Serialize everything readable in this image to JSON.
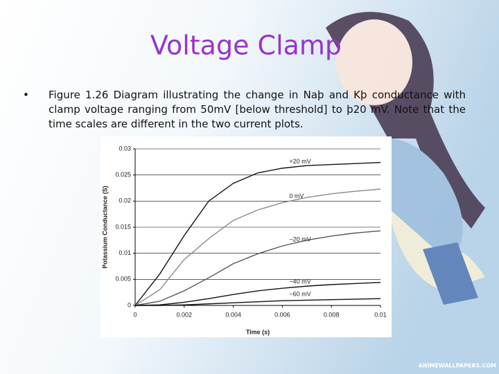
{
  "slide": {
    "title": "Voltage Clamp",
    "bullet": "Figure 1.26 Diagram illustrating the change in Naþ and Kþ conductance with clamp voltage ranging from 50mV [below threshold] to þ20 mV. Note that the time scales are different in the two current plots.",
    "watermark": "ANIMEWALLPAPERS.COM"
  },
  "chart_data": {
    "type": "line",
    "xlabel": "Time (s)",
    "ylabel": "Potassium Conductance (S)",
    "x": [
      0,
      0.001,
      0.002,
      0.003,
      0.004,
      0.005,
      0.006,
      0.007,
      0.008,
      0.009,
      0.01
    ],
    "xlim": [
      0,
      0.01
    ],
    "xticks": [
      0,
      0.002,
      0.004,
      0.006,
      0.008,
      0.01
    ],
    "ylim": [
      0,
      0.03
    ],
    "yticks": [
      0,
      0.005,
      0.01,
      0.015,
      0.02,
      0.025,
      0.03
    ],
    "series": [
      {
        "name": "+20 mV",
        "color": "#111111",
        "values": [
          0,
          0.006,
          0.0134,
          0.02,
          0.0234,
          0.0254,
          0.0263,
          0.0268,
          0.027,
          0.0272,
          0.0274
        ]
      },
      {
        "name": "0 mV",
        "color": "#8a8a8a",
        "values": [
          0,
          0.003,
          0.0088,
          0.0128,
          0.0163,
          0.0183,
          0.0197,
          0.0207,
          0.0214,
          0.0219,
          0.0223
        ]
      },
      {
        "name": "−20 mV",
        "color": "#555555",
        "values": [
          0,
          0.0008,
          0.0028,
          0.0053,
          0.008,
          0.0099,
          0.0114,
          0.0125,
          0.0133,
          0.0139,
          0.0143
        ]
      },
      {
        "name": "−40 mV",
        "color": "#111111",
        "values": [
          0,
          0.0001,
          0.0006,
          0.0013,
          0.0021,
          0.0028,
          0.0033,
          0.0037,
          0.004,
          0.0042,
          0.0044
        ]
      },
      {
        "name": "−60 mV",
        "color": "#111111",
        "values": [
          0,
          0,
          0.0001,
          0.0003,
          0.0005,
          0.0007,
          0.0009,
          0.001,
          0.0011,
          0.0012,
          0.0013
        ]
      }
    ]
  }
}
